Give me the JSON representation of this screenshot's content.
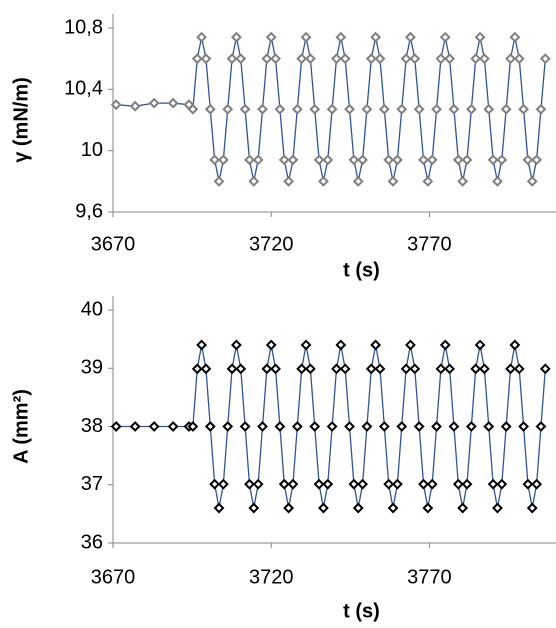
{
  "chart_data": [
    {
      "type": "line",
      "x_label": "t (s)",
      "y_label": "γ (mN/m)",
      "xlim": [
        3670,
        3810
      ],
      "xticks": [
        3670,
        3720,
        3770
      ],
      "ylim": [
        9.6,
        10.8
      ],
      "yticks": [
        {
          "value": 9.6,
          "label": "9,6"
        },
        10,
        {
          "value": 10.4,
          "label": "10,4"
        },
        {
          "value": 10.8,
          "label": "10,8"
        }
      ],
      "marker": "diamond",
      "marker_color": "#7f7f7f",
      "x": [
        3671,
        3677,
        3683,
        3689,
        3694,
        3695.25,
        3696.625,
        3698,
        3699.375,
        3700.75,
        3702.125,
        3703.5,
        3704.875,
        3706.25,
        3707.625,
        3709,
        3710.375,
        3711.75,
        3713.125,
        3714.5,
        3715.875,
        3717.25,
        3718.625,
        3720,
        3721.375,
        3722.75,
        3724.125,
        3725.5,
        3726.875,
        3728.25,
        3729.625,
        3731,
        3732.375,
        3733.75,
        3735.125,
        3736.5,
        3737.875,
        3739.25,
        3740.625,
        3742,
        3743.375,
        3744.75,
        3746.125,
        3747.5,
        3748.875,
        3750.25,
        3751.625,
        3753,
        3754.375,
        3755.75,
        3757.125,
        3758.5,
        3759.875,
        3761.25,
        3762.625,
        3764,
        3765.375,
        3766.75,
        3768.125,
        3769.5,
        3770.875,
        3772.25,
        3773.625,
        3775,
        3776.375,
        3777.75,
        3779.125,
        3780.5,
        3781.875,
        3783.25,
        3784.625,
        3786,
        3787.375,
        3788.75,
        3790.125,
        3791.5,
        3792.875,
        3794.25,
        3795.625,
        3797,
        3798.375,
        3799.75,
        3801.125,
        3802.5,
        3803.875,
        3805.25,
        3806.625
      ],
      "series": [
        {
          "color": "#2f5597",
          "values": [
            10.3,
            10.29,
            10.31,
            10.31,
            10.3,
            10.27,
            10.6,
            10.74,
            10.6,
            10.27,
            9.94,
            9.8,
            9.94,
            10.27,
            10.6,
            10.74,
            10.6,
            10.27,
            9.94,
            9.8,
            9.94,
            10.27,
            10.6,
            10.74,
            10.6,
            10.27,
            9.94,
            9.8,
            9.94,
            10.27,
            10.6,
            10.74,
            10.6,
            10.27,
            9.94,
            9.8,
            9.94,
            10.27,
            10.6,
            10.74,
            10.6,
            10.27,
            9.94,
            9.8,
            9.94,
            10.27,
            10.6,
            10.74,
            10.6,
            10.27,
            9.94,
            9.8,
            9.94,
            10.27,
            10.6,
            10.74,
            10.6,
            10.27,
            9.94,
            9.8,
            9.94,
            10.27,
            10.6,
            10.74,
            10.6,
            10.27,
            9.94,
            9.8,
            9.94,
            10.27,
            10.6,
            10.74,
            10.6,
            10.27,
            9.94,
            9.8,
            9.94,
            10.27,
            10.6,
            10.74,
            10.6,
            10.27,
            9.94,
            9.8,
            9.94,
            10.27,
            10.6
          ]
        }
      ]
    },
    {
      "type": "line",
      "x_label": "t (s)",
      "y_label": "A (mm²)",
      "xlim": [
        3670,
        3810
      ],
      "xticks": [
        3670,
        3720,
        3770
      ],
      "ylim": [
        36,
        40
      ],
      "yticks": [
        36,
        37,
        38,
        39,
        40
      ],
      "marker": "diamond",
      "marker_color": "#000000",
      "x": [
        3671,
        3677,
        3683,
        3689,
        3694,
        3695.25,
        3696.625,
        3698,
        3699.375,
        3700.75,
        3702.125,
        3703.5,
        3704.875,
        3706.25,
        3707.625,
        3709,
        3710.375,
        3711.75,
        3713.125,
        3714.5,
        3715.875,
        3717.25,
        3718.625,
        3720,
        3721.375,
        3722.75,
        3724.125,
        3725.5,
        3726.875,
        3728.25,
        3729.625,
        3731,
        3732.375,
        3733.75,
        3735.125,
        3736.5,
        3737.875,
        3739.25,
        3740.625,
        3742,
        3743.375,
        3744.75,
        3746.125,
        3747.5,
        3748.875,
        3750.25,
        3751.625,
        3753,
        3754.375,
        3755.75,
        3757.125,
        3758.5,
        3759.875,
        3761.25,
        3762.625,
        3764,
        3765.375,
        3766.75,
        3768.125,
        3769.5,
        3770.875,
        3772.25,
        3773.625,
        3775,
        3776.375,
        3777.75,
        3779.125,
        3780.5,
        3781.875,
        3783.25,
        3784.625,
        3786,
        3787.375,
        3788.75,
        3790.125,
        3791.5,
        3792.875,
        3794.25,
        3795.625,
        3797,
        3798.375,
        3799.75,
        3801.125,
        3802.5,
        3803.875,
        3805.25,
        3806.625
      ],
      "series": [
        {
          "color": "#2f5597",
          "values": [
            38,
            38,
            38,
            38,
            38,
            38,
            38.99,
            39.4,
            38.99,
            38,
            37.01,
            36.6,
            37.01,
            38,
            38.99,
            39.4,
            38.99,
            38,
            37.01,
            36.6,
            37.01,
            38,
            38.99,
            39.4,
            38.99,
            38,
            37.01,
            36.6,
            37.01,
            38,
            38.99,
            39.4,
            38.99,
            38,
            37.01,
            36.6,
            37.01,
            38,
            38.99,
            39.4,
            38.99,
            38,
            37.01,
            36.6,
            37.01,
            38,
            38.99,
            39.4,
            38.99,
            38,
            37.01,
            36.6,
            37.01,
            38,
            38.99,
            39.4,
            38.99,
            38,
            37.01,
            36.6,
            37.01,
            38,
            38.99,
            39.4,
            38.99,
            38,
            37.01,
            36.6,
            37.01,
            38,
            38.99,
            39.4,
            38.99,
            38,
            37.01,
            36.6,
            37.01,
            38,
            38.99,
            39.4,
            38.99,
            38,
            37.01,
            36.6,
            37.01,
            38,
            38.99
          ]
        }
      ]
    }
  ]
}
